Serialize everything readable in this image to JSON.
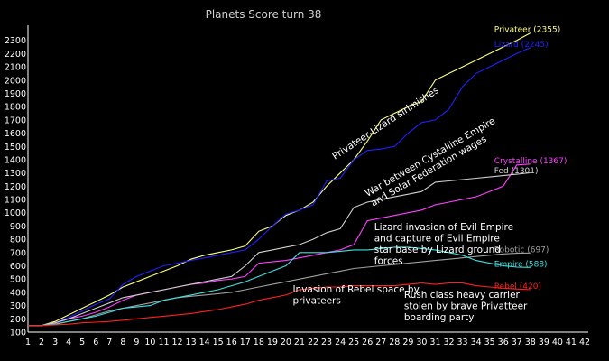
{
  "chart_data": {
    "type": "line",
    "title": "Planets Score turn 38",
    "xlabel": "",
    "ylabel": "",
    "x": [
      1,
      2,
      3,
      4,
      5,
      6,
      7,
      8,
      9,
      10,
      11,
      12,
      13,
      14,
      15,
      16,
      17,
      18,
      19,
      20,
      21,
      22,
      23,
      24,
      25,
      26,
      27,
      28,
      29,
      30,
      31,
      32,
      33,
      34,
      35,
      36,
      37,
      38
    ],
    "x_ticks": [
      1,
      2,
      3,
      4,
      5,
      6,
      7,
      8,
      9,
      10,
      11,
      12,
      13,
      14,
      15,
      16,
      17,
      18,
      19,
      20,
      21,
      22,
      23,
      24,
      25,
      26,
      27,
      28,
      29,
      30,
      31,
      32,
      33,
      34,
      35,
      36,
      37,
      38,
      39,
      40,
      41,
      42
    ],
    "y_ticks": [
      100,
      200,
      300,
      400,
      500,
      600,
      700,
      800,
      900,
      1000,
      1100,
      1200,
      1300,
      1400,
      1500,
      1600,
      1700,
      1800,
      1900,
      2000,
      2100,
      2200,
      2300
    ],
    "xlim": [
      1,
      42
    ],
    "ylim": [
      100,
      2400
    ],
    "grid": false,
    "series": [
      {
        "name": "Privateer",
        "end_label": "Privateer (2355)",
        "color": "#ffff80",
        "values": [
          150,
          150,
          180,
          230,
          280,
          330,
          380,
          440,
          480,
          520,
          560,
          600,
          650,
          680,
          700,
          720,
          750,
          860,
          900,
          980,
          1020,
          1080,
          1200,
          1300,
          1400,
          1540,
          1700,
          1750,
          1800,
          1840,
          2000,
          2050,
          2100,
          2150,
          2200,
          2250,
          2300,
          2355
        ]
      },
      {
        "name": "Lizard",
        "end_label": "Lizard (2245)",
        "color": "#2020ff",
        "values": [
          150,
          150,
          170,
          210,
          260,
          310,
          350,
          460,
          520,
          560,
          600,
          620,
          640,
          660,
          680,
          700,
          720,
          800,
          900,
          990,
          1020,
          1060,
          1240,
          1260,
          1400,
          1470,
          1480,
          1500,
          1600,
          1680,
          1700,
          1780,
          1950,
          2050,
          2100,
          2150,
          2200,
          2245
        ]
      },
      {
        "name": "Crystalline",
        "end_label": "Crystalline (1367)",
        "color": "#ff40ff",
        "values": [
          150,
          150,
          170,
          200,
          220,
          250,
          290,
          340,
          380,
          400,
          420,
          440,
          460,
          470,
          490,
          500,
          520,
          620,
          630,
          640,
          660,
          680,
          700,
          720,
          760,
          940,
          960,
          980,
          1000,
          1020,
          1060,
          1080,
          1100,
          1120,
          1160,
          1200,
          1360,
          1367
        ]
      },
      {
        "name": "Fed",
        "end_label": "Fed (1301)",
        "color": "#d0d0d0",
        "values": [
          150,
          150,
          170,
          200,
          240,
          280,
          320,
          360,
          380,
          400,
          420,
          440,
          460,
          480,
          500,
          520,
          600,
          700,
          720,
          740,
          760,
          800,
          850,
          880,
          1040,
          1080,
          1100,
          1120,
          1140,
          1160,
          1230,
          1240,
          1250,
          1260,
          1270,
          1280,
          1290,
          1301
        ]
      },
      {
        "name": "Robotic",
        "end_label": "Robotic (697)",
        "color": "#a0a0a0",
        "values": [
          150,
          150,
          160,
          180,
          200,
          230,
          260,
          280,
          300,
          320,
          340,
          360,
          370,
          380,
          390,
          400,
          420,
          440,
          460,
          480,
          500,
          520,
          540,
          560,
          580,
          590,
          600,
          610,
          620,
          630,
          640,
          650,
          660,
          670,
          680,
          690,
          695,
          697
        ]
      },
      {
        "name": "Empire",
        "end_label": "Empire (588)",
        "color": "#40e0e0",
        "values": [
          150,
          150,
          160,
          180,
          200,
          220,
          250,
          280,
          290,
          300,
          340,
          360,
          380,
          400,
          420,
          450,
          480,
          520,
          560,
          600,
          700,
          700,
          700,
          710,
          720,
          720,
          730,
          740,
          740,
          730,
          720,
          700,
          680,
          640,
          620,
          600,
          590,
          588
        ]
      },
      {
        "name": "Rebel",
        "end_label": "Rebel (420)",
        "color": "#ff2020",
        "values": [
          150,
          150,
          155,
          160,
          170,
          175,
          180,
          190,
          200,
          210,
          220,
          230,
          240,
          255,
          270,
          290,
          310,
          340,
          360,
          380,
          420,
          430,
          440,
          440,
          450,
          450,
          450,
          450,
          460,
          470,
          460,
          470,
          470,
          450,
          440,
          430,
          425,
          420
        ]
      }
    ],
    "annotations": [
      {
        "text": "Privateer-Lizard slrimishes",
        "rotate": -33,
        "x": 23.6,
        "y": 1400
      },
      {
        "lines": [
          "War between Cystalline Empire",
          "and Solar Federation wages"
        ],
        "rotate": -30,
        "x": 26.0,
        "y": 1120
      },
      {
        "lines": [
          "Lizard invasion of Evil Empire",
          "and capture of Evil Empire",
          "star base by Lizard ground",
          "forces"
        ],
        "rotate": 0,
        "x": 26.5,
        "y": 870
      },
      {
        "lines": [
          "Invasion of Rebel space by",
          "privateers"
        ],
        "rotate": 0,
        "x": 20.5,
        "y": 400
      },
      {
        "lines": [
          "Rush class heavy carrier",
          "stolen by brave Privatteer",
          "boarding party"
        ],
        "rotate": 0,
        "x": 28.7,
        "y": 360
      }
    ]
  }
}
